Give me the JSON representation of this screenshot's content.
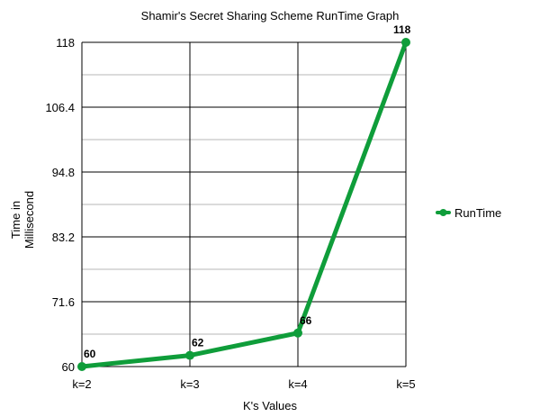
{
  "chart_data": {
    "type": "line",
    "title": "Shamir's Secret Sharing Scheme RunTime Graph",
    "xlabel": "K's Values",
    "ylabel_lines": [
      "Time in",
      "Millisecond"
    ],
    "categories": [
      "k=2",
      "k=3",
      "k=4",
      "k=5"
    ],
    "series": [
      {
        "name": "RunTime",
        "values": [
          60,
          62,
          66,
          118
        ],
        "labels": [
          "60",
          "62",
          "66",
          "118"
        ]
      }
    ],
    "yticks": [
      "60",
      "71.6",
      "83.2",
      "94.8",
      "106.4",
      "118"
    ],
    "ylim": [
      60,
      118
    ],
    "grid": true,
    "legend_position": "right",
    "colors": {
      "series": "#0f9d3a",
      "major_grid": "#000000",
      "minor_grid": "#b7b7b7"
    }
  }
}
